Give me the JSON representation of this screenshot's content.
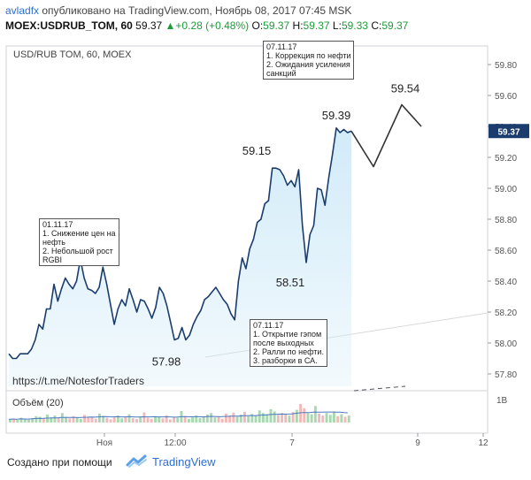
{
  "header": {
    "user": "avladfx",
    "published": "опубликовано на TradingView.com, Ноябрь 08, 2017 07:45 MSK",
    "symbol": "MOEX:USDRUB_TOM, 60",
    "last": "59.37",
    "change_arrow": "▲",
    "change": "+0.28 (+0.48%)",
    "o_label": "O:",
    "o": "59.37",
    "h_label": "H:",
    "h": "59.37",
    "l_label": "L:",
    "l": "59.33",
    "c_label": "C:",
    "c": "59.37"
  },
  "chart_data": {
    "type": "line",
    "title": "USD/RUB TOM, 60, MOEX",
    "watermark": "https://t.me/NotesforTraders",
    "y_ticks": [
      "59.80",
      "59.60",
      "59.40",
      "59.20",
      "59.00",
      "58.80",
      "58.60",
      "58.40",
      "58.20",
      "58.00",
      "57.80"
    ],
    "ylim": [
      57.72,
      59.92
    ],
    "x_ticks": [
      "Ноя",
      "12:00",
      "7",
      "9",
      "12"
    ],
    "last_price_label": "59.37",
    "series": [
      {
        "values": [
          57.93,
          57.9,
          57.9,
          57.93,
          57.93,
          57.93,
          57.96,
          58.02,
          58.12,
          58.09,
          58.22,
          58.22,
          58.38,
          58.27,
          58.35,
          58.42,
          58.38,
          58.35,
          58.4,
          58.54,
          58.42,
          58.35,
          58.34,
          58.32,
          58.36,
          58.49,
          58.38,
          58.25,
          58.12,
          58.22,
          58.28,
          58.24,
          58.35,
          58.28,
          58.2,
          58.28,
          58.27,
          58.22,
          58.16,
          58.23,
          58.36,
          58.32,
          58.24,
          58.13,
          58.02,
          58.03,
          58.1,
          58.02,
          58.05,
          58.12,
          58.17,
          58.21,
          58.28,
          58.3,
          58.33,
          58.36,
          58.32,
          58.28,
          58.25,
          58.19,
          58.15,
          58.4,
          58.55,
          58.48,
          58.61,
          58.67,
          58.78,
          58.8,
          58.9,
          58.92,
          59.13,
          59.13,
          59.12,
          59.08,
          59.02,
          59.05,
          59.01,
          59.12,
          58.76,
          58.52,
          58.7,
          58.76,
          59.0,
          58.99,
          58.89,
          59.07,
          59.22,
          59.39,
          59.36,
          59.38,
          59.36,
          59.37
        ]
      }
    ],
    "projection": [
      59.37,
      59.14,
      59.54,
      59.4
    ],
    "price_labels": [
      {
        "text": "59.39",
        "value": 59.39
      },
      {
        "text": "59.54",
        "value": 59.54
      },
      {
        "text": "59.15",
        "value": 59.15
      },
      {
        "text": "58.51",
        "value": 58.51
      },
      {
        "text": "57.98",
        "value": 57.98
      }
    ],
    "volume": {
      "label": "Объём (20)",
      "axis_label": "1B",
      "values": [
        0.1,
        0.12,
        0.08,
        0.15,
        0.11,
        0.09,
        0.14,
        0.2,
        0.18,
        0.12,
        0.25,
        0.16,
        0.22,
        0.14,
        0.3,
        0.18,
        0.13,
        0.2,
        0.15,
        0.11,
        0.24,
        0.17,
        0.19,
        0.12,
        0.28,
        0.21,
        0.15,
        0.1,
        0.16,
        0.22,
        0.13,
        0.18,
        0.26,
        0.14,
        0.11,
        0.19,
        0.32,
        0.15,
        0.12,
        0.2,
        0.17,
        0.13,
        0.23,
        0.1,
        0.18,
        0.15,
        0.36,
        0.2,
        0.12,
        0.16,
        0.22,
        0.14,
        0.18,
        0.25,
        0.3,
        0.16,
        0.2,
        0.12,
        0.28,
        0.22,
        0.31,
        0.18,
        0.25,
        0.34,
        0.2,
        0.27,
        0.22,
        0.38,
        0.3,
        0.26,
        0.42,
        0.35,
        0.24,
        0.3,
        0.28,
        0.22,
        0.33,
        0.4,
        0.58,
        0.45,
        0.3,
        0.26,
        0.52,
        0.28,
        0.22,
        0.3,
        0.24,
        0.35,
        0.2,
        0.26,
        0.18,
        0.22
      ]
    }
  },
  "annotations": [
    {
      "text": "07.11.17\n1. Коррекция по нефти\n2. Ожидания усиления\nсанкций"
    },
    {
      "text": "01.11.17\n1. Снижение цен на\nнефть\n2. Небольшой рост\nRGBI"
    },
    {
      "text": "07.11.17\n1. Открытие гэпом\nпосле выходных\n2. Ралли по нефти.\n3. разборки в СА."
    }
  ],
  "footer": {
    "created": "Создано при помощи",
    "brand": "TradingView"
  },
  "colors": {
    "line": "#1b3d6e",
    "fill": "#cfeaf8",
    "up": "#1e9b3a",
    "brand": "#2a6fd6",
    "price_tag": "#1b3d6e"
  }
}
